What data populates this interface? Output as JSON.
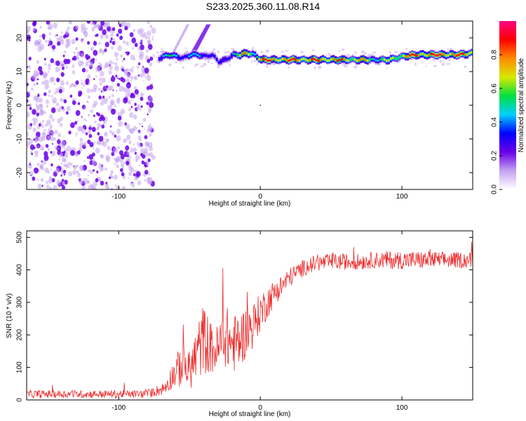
{
  "page": {
    "title": "S233.2025.360.11.08.R14"
  },
  "colors": {
    "spectrogram_colormap": [
      "#ffffff",
      "#c3a3ef",
      "#6a00e8",
      "#0000ff",
      "#00cfff",
      "#00e040",
      "#d8e800",
      "#ff8a00",
      "#ff0000",
      "#ff0080"
    ],
    "snr_line": "#ee2a2a",
    "frame": "#000000"
  },
  "chart_data": [
    {
      "type": "heatmap",
      "title": "",
      "xlabel": "Height of straight line (km)",
      "ylabel": "Frequency (Hz)",
      "xlim": [
        -165,
        150
      ],
      "ylim": [
        -25,
        25
      ],
      "xticks": [
        -100,
        0,
        100
      ],
      "yticks": [
        -20,
        -10,
        0,
        10,
        20
      ],
      "colorbar": {
        "label": "Normalized spectral amplitude",
        "range": [
          0.0,
          1.0
        ],
        "ticks": [
          0.0,
          0.2,
          0.4,
          0.6,
          0.8
        ]
      },
      "noise_region_x": [
        -165,
        -75
      ],
      "ridge": {
        "x": [
          -72,
          -65,
          -60,
          -55,
          -50,
          -45,
          -40,
          -35,
          -30,
          -25,
          -20,
          -15,
          -10,
          -5,
          0,
          10,
          20,
          30,
          40,
          50,
          60,
          70,
          80,
          90,
          100,
          110,
          120,
          130,
          140,
          150
        ],
        "freq": [
          14,
          15,
          14.5,
          14,
          15,
          15,
          14.5,
          15,
          13,
          13.5,
          15,
          15,
          15.5,
          15,
          13.5,
          13.5,
          13.5,
          13.5,
          13.5,
          13.5,
          13.5,
          13.5,
          13.5,
          13.5,
          14.5,
          15,
          15,
          15,
          15,
          15.5
        ],
        "amplitude": [
          0.5,
          0.55,
          0.5,
          0.45,
          0.5,
          0.5,
          0.45,
          0.4,
          0.35,
          0.45,
          0.55,
          0.75,
          0.85,
          0.6,
          0.9,
          0.92,
          0.92,
          0.9,
          0.9,
          0.9,
          0.85,
          0.8,
          0.65,
          0.7,
          0.85,
          0.95,
          0.95,
          0.95,
          0.92,
          0.9
        ]
      }
    },
    {
      "type": "line",
      "title": "",
      "xlabel": "Height of straight line (km)",
      "ylabel": "SNR (10 * v/v)",
      "xlim": [
        -165,
        150
      ],
      "ylim": [
        0,
        520
      ],
      "xticks": [
        -100,
        0,
        100
      ],
      "yticks": [
        0,
        100,
        200,
        300,
        400,
        500
      ],
      "series": [
        {
          "x": [
            -165,
            -140,
            -110,
            -80,
            -68,
            -62,
            -55,
            -50,
            -45,
            -40,
            -35,
            -30,
            -25,
            -20,
            -15,
            -10,
            -5,
            0,
            5,
            10,
            15,
            20,
            25,
            30,
            35,
            40,
            50,
            60,
            70,
            80,
            90,
            100,
            110,
            120,
            130,
            140,
            150
          ],
          "y": [
            18,
            18,
            18,
            18,
            35,
            75,
            110,
            90,
            140,
            190,
            160,
            150,
            200,
            170,
            180,
            210,
            230,
            270,
            300,
            330,
            350,
            375,
            390,
            405,
            415,
            420,
            425,
            425,
            425,
            430,
            430,
            430,
            430,
            430,
            430,
            430,
            430
          ],
          "spread": [
            12,
            12,
            12,
            12,
            20,
            40,
            70,
            60,
            90,
            110,
            80,
            80,
            100,
            90,
            90,
            80,
            70,
            60,
            50,
            40,
            35,
            30,
            28,
            26,
            25,
            25,
            25,
            25,
            25,
            25,
            28,
            28,
            28,
            28,
            25,
            25,
            25
          ]
        }
      ]
    }
  ]
}
